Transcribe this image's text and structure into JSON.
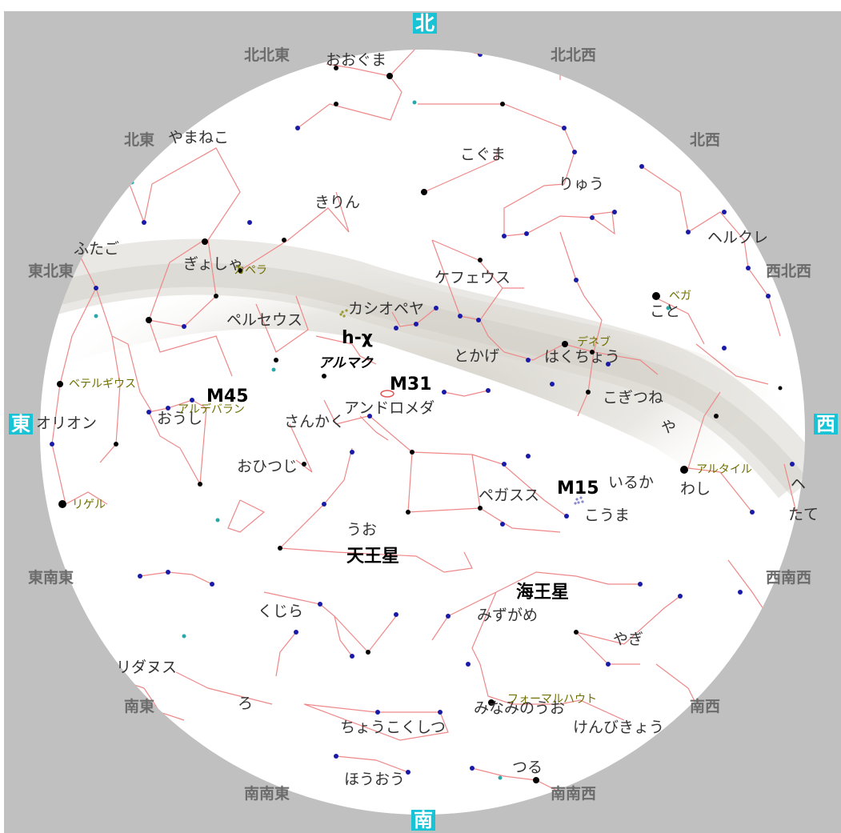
{
  "map": {
    "colors": {
      "background": "#c0c0c0",
      "sky": "#ffffff",
      "constellation_lines": "#ee8888",
      "milky_way": "#d4d0c8",
      "cardinal": "#19c3d6"
    },
    "cardinals": {
      "north": "北",
      "east": "東",
      "south": "南",
      "west": "西"
    },
    "directions": {
      "nne": "北北東",
      "nnw": "北北西",
      "ne": "北東",
      "nw": "北西",
      "ene": "東北東",
      "wnw": "西北西",
      "ese": "東南東",
      "wsw": "西南西",
      "se": "南東",
      "sw": "南西",
      "sse": "南南東",
      "ssw": "南南西"
    },
    "constellations": {
      "ursa_major": "おおぐま",
      "ursa_minor": "こぐま",
      "lynx": "やまねこ",
      "draco": "りゅう",
      "camelopardalis": "きりん",
      "gemini": "ふたご",
      "auriga": "ぎょしゃ",
      "hercules": "ヘルクレ",
      "cepheus": "ケフェウス",
      "cassiopeia": "カシオペヤ",
      "lyra": "こと",
      "perseus": "ペルセウス",
      "lacerta": "とかげ",
      "cygnus": "はくちょう",
      "andromeda": "アンドロメダ",
      "vulpecula": "こぎつね",
      "triangulum": "さんかく",
      "taurus": "おうし",
      "orion": "オリオン",
      "sagitta": "や",
      "aries": "おひつじ",
      "delphinus": "いるか",
      "aquila": "わし",
      "pegasus": "ペガスス",
      "equuleus": "こうま",
      "pisces": "うお",
      "cetus": "くじら",
      "aquarius": "みずがめ",
      "capricornus": "やぎ",
      "eridanus": "リダヌス",
      "fornax": "ろ",
      "piscis_austrinus": "みなみのうお",
      "sculptor": "ちょうこくしつ",
      "microscopium": "けんびきょう",
      "phoenix": "ほうおう",
      "grus": "つる",
      "serpens": "ヘ",
      "scutum": "たて"
    },
    "stars": {
      "capella": "カペラ",
      "vega": "ベガ",
      "deneb": "デネブ",
      "betelgeuse": "ベテルギウス",
      "aldebaran": "アルデバラン",
      "altair": "アルタイル",
      "rigel": "リゲル",
      "fomalhaut": "フォーマルハウト"
    },
    "objects": {
      "h_chi": "h-χ",
      "almach": "アルマク",
      "m31": "M31",
      "m45": "M45",
      "m15": "M15",
      "uranus": "天王星",
      "neptune": "海王星"
    }
  }
}
